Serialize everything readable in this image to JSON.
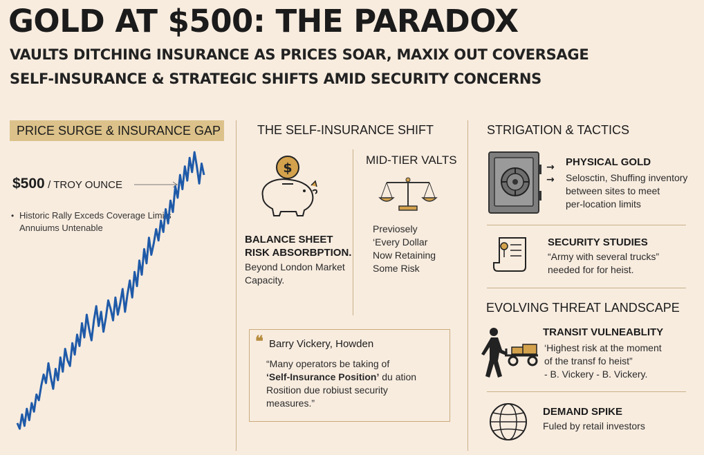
{
  "header": {
    "title": "GOLD AT $500: THE PARADOX",
    "subtitle1": "VAULTS DITCHING  INSURANCE AS PRICES SOAR, MAXIX OUT COVERSAGE",
    "subtitle2": "SELF-INSURANCE & STRATEGIC SHIFTS AMID SECURITY CONCERNS"
  },
  "price_panel": {
    "banner": "PRICE SURGE & INSURANCE GAP",
    "price": "$500",
    "unit": "/ TROY OUNCE",
    "bullet_line1": "Historic Rally Exceds Coverage Limits",
    "bullet_line2": "Annuiums Untenable"
  },
  "chart_data": {
    "type": "line",
    "title": "",
    "xlabel": "",
    "ylabel": "",
    "y": [
      0.05,
      0.03,
      0.08,
      0.04,
      0.1,
      0.06,
      0.12,
      0.09,
      0.15,
      0.13,
      0.18,
      0.22,
      0.19,
      0.26,
      0.21,
      0.17,
      0.24,
      0.2,
      0.28,
      0.23,
      0.31,
      0.27,
      0.25,
      0.33,
      0.29,
      0.36,
      0.32,
      0.4,
      0.35,
      0.43,
      0.38,
      0.34,
      0.41,
      0.46,
      0.39,
      0.44,
      0.37,
      0.42,
      0.48,
      0.45,
      0.41,
      0.49,
      0.43,
      0.47,
      0.52,
      0.44,
      0.5,
      0.55,
      0.49,
      0.58,
      0.53,
      0.62,
      0.57,
      0.66,
      0.61,
      0.7,
      0.64,
      0.68,
      0.73,
      0.69,
      0.76,
      0.72,
      0.8,
      0.75,
      0.83,
      0.79,
      0.88,
      0.84,
      0.92,
      0.87,
      0.95,
      0.9,
      0.98,
      0.93,
      1.0,
      0.95,
      0.89,
      0.96,
      0.92
    ],
    "line_color": "#1f5aa8"
  },
  "self_insurance": {
    "heading": "THE SELF-INSURANCE SHIFT",
    "left_title1": "BALANCE SHEET",
    "left_title2": "RISK ABSORBPTION.",
    "left_text1": "Beyond London Market",
    "left_text2": "Capacity.",
    "right_heading": "MID-TIER VALTS",
    "right_text1": "Previosely",
    "right_text2": "‘Every Dollar",
    "right_text3": "Now Retaining",
    "right_text4": "Some Risk",
    "piggy_icon": "piggy-bank-icon",
    "scale_icon": "scale-icon"
  },
  "quote": {
    "mark": "❝",
    "name": "Barry Vickery, Howden",
    "line1": "“Many operators be taking of",
    "line2_bold": "‘Self-Insurance Position’",
    "line2_rest": " du ation",
    "line3": "Rosition due robiust security",
    "line4": "measures.”"
  },
  "tactics": {
    "heading": "STRIGATION & TACTICS",
    "physical_gold": "PHYSICAL GOLD",
    "physical_text1": "Selosctin, Shuffing inventory",
    "physical_text2": "between sites to meet",
    "physical_text3": "per-location limits",
    "arrow": "→",
    "security_title": "SECURITY STUDIES",
    "security_text1": "“Army with several trucks”",
    "security_text2": "needed for for heist."
  },
  "threats": {
    "heading": "EVOLVING THREAT LANDSCAPE",
    "transit_title": "TRANSIT VULNEABLITY",
    "transit_text1": "‘Highest risk at the moment",
    "transit_text2": "of the transf fo heist”",
    "transit_text3": "- B. Vickery - B. Vickery.",
    "demand_title": "DEMAND SPIKE",
    "demand_text": "Fuled by retail investors"
  },
  "colors": {
    "background": "#f8ecdf",
    "banner": "#dcc28a",
    "gold_icon": "#d4a24c",
    "divider": "#c9b089",
    "line": "#1f5aa8"
  }
}
